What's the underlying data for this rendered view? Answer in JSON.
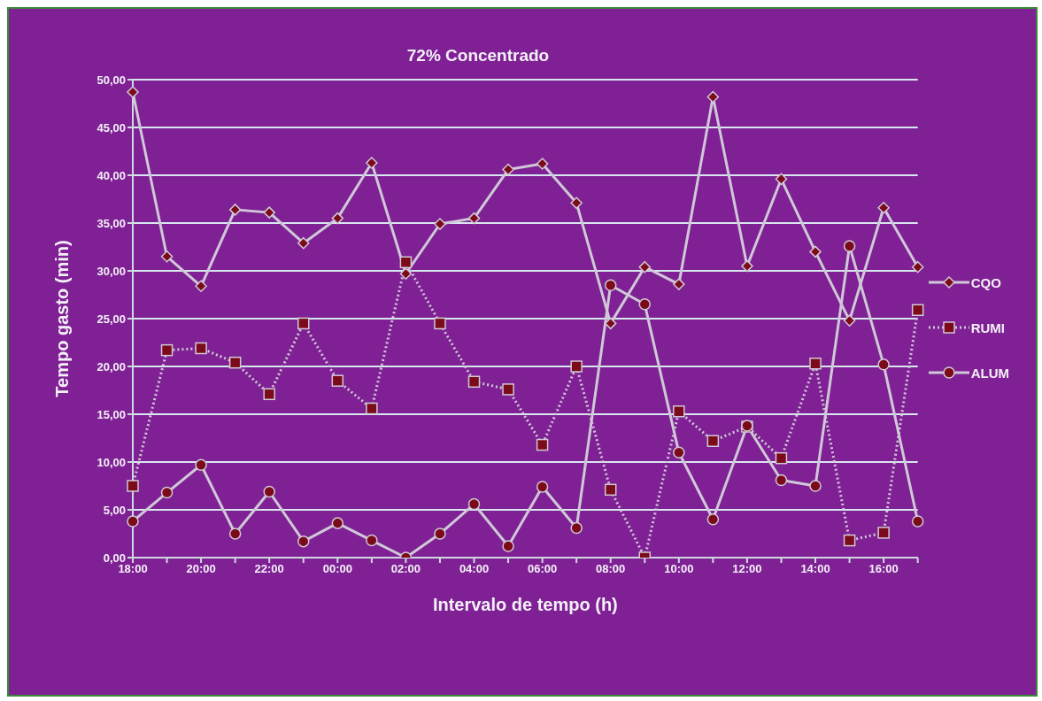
{
  "chart_data": {
    "type": "line",
    "title": "72% Concentrado",
    "xlabel": "Intervalo de tempo (h)",
    "ylabel": "Tempo gasto (min)",
    "categories": [
      "18:00",
      null,
      "20:00",
      null,
      "22:00",
      null,
      "00:00",
      null,
      "02:00",
      null,
      "04:00",
      null,
      "06:00",
      null,
      "08:00",
      null,
      "10:00",
      null,
      "12:00",
      null,
      "14:00",
      null,
      "16:00",
      null
    ],
    "series": [
      {
        "name": "CQO",
        "color": "#d0c8d8",
        "marker": "diamond",
        "line_style": "solid",
        "values": [
          48.7,
          31.5,
          28.4,
          36.4,
          36.1,
          32.9,
          35.5,
          41.3,
          29.7,
          34.9,
          35.5,
          40.6,
          41.2,
          37.1,
          24.5,
          30.4,
          28.6,
          48.2,
          30.5,
          39.6,
          32.0,
          24.8,
          36.6,
          30.4
        ]
      },
      {
        "name": "RUMI",
        "color": "#d0c8d8",
        "marker": "square",
        "line_style": "dotted",
        "values": [
          7.5,
          21.7,
          21.9,
          20.4,
          17.1,
          24.5,
          18.5,
          15.6,
          30.9,
          24.5,
          18.4,
          17.6,
          11.8,
          20.0,
          7.1,
          0.0,
          15.3,
          12.2,
          13.7,
          10.4,
          20.3,
          1.8,
          2.6,
          25.9
        ]
      },
      {
        "name": "ALUM",
        "color": "#d0c8d8",
        "marker": "circle",
        "line_style": "solid",
        "values": [
          3.8,
          6.8,
          9.7,
          2.5,
          6.9,
          1.7,
          3.6,
          1.8,
          0.0,
          2.5,
          5.6,
          1.2,
          7.4,
          3.1,
          28.5,
          26.5,
          11.0,
          4.0,
          13.8,
          8.1,
          7.5,
          32.6,
          20.2,
          3.8
        ]
      }
    ],
    "ylim": [
      0,
      50
    ],
    "yticks": [
      {
        "value": 0,
        "label": "0,00"
      },
      {
        "value": 5,
        "label": "5,00"
      },
      {
        "value": 10,
        "label": "10,00"
      },
      {
        "value": 15,
        "label": "15,00"
      },
      {
        "value": 20,
        "label": "20,00"
      },
      {
        "value": 25,
        "label": "25,00"
      },
      {
        "value": 30,
        "label": "30,00"
      },
      {
        "value": 35,
        "label": "35,00"
      },
      {
        "value": 40,
        "label": "40,00"
      },
      {
        "value": 45,
        "label": "45,00"
      },
      {
        "value": 50,
        "label": "50,00"
      }
    ],
    "grid": "y",
    "legend": "right"
  }
}
